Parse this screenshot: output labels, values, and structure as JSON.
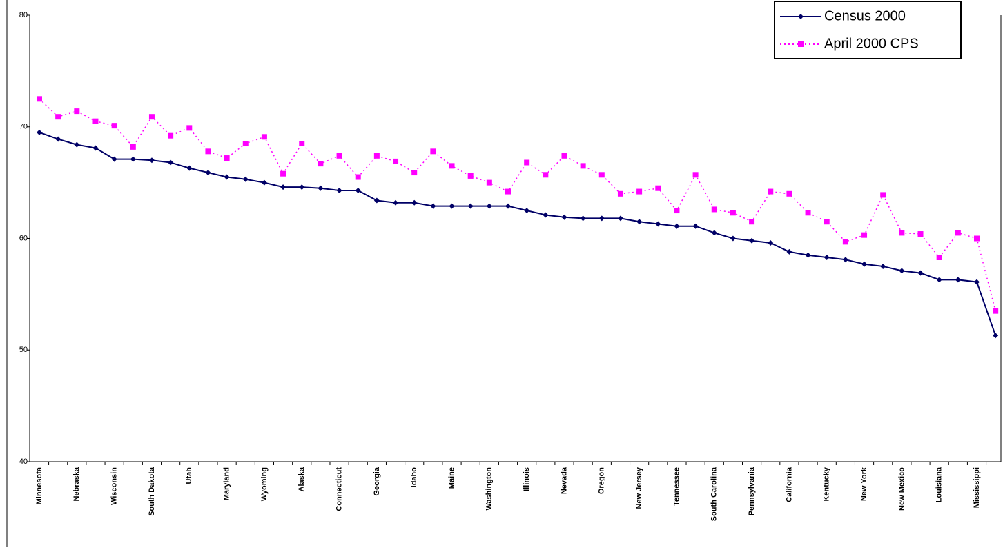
{
  "chart_data": {
    "type": "line",
    "categories": [
      "Minnesota",
      null,
      "Nebraska",
      null,
      "Wisconsin",
      null,
      "South Dakota",
      null,
      "Utah",
      null,
      "Maryland",
      null,
      "Wyoming",
      null,
      "Alaska",
      null,
      "Connecticut",
      null,
      "Georgia",
      null,
      "Idaho",
      null,
      "Maine",
      null,
      "Washington",
      null,
      "Illinois",
      null,
      "Nevada",
      null,
      "Oregon",
      null,
      "New Jersey",
      null,
      "Tennessee",
      null,
      "South Carolina",
      null,
      "Pennsylvania",
      null,
      "California",
      null,
      "Kentucky",
      null,
      "New York",
      null,
      "New Mexico",
      null,
      "Louisiana",
      null,
      "Mississippi",
      null
    ],
    "series": [
      {
        "name": "Census 2000",
        "color": "#000066",
        "marker": "diamond",
        "line_style": "solid",
        "values": [
          69.5,
          68.9,
          68.4,
          68.1,
          67.1,
          67.1,
          67.0,
          66.8,
          66.3,
          65.9,
          65.5,
          65.3,
          65.0,
          64.6,
          64.6,
          64.5,
          64.3,
          64.3,
          63.4,
          63.2,
          63.2,
          62.9,
          62.9,
          62.9,
          62.9,
          62.9,
          62.5,
          62.1,
          61.9,
          61.8,
          61.8,
          61.8,
          61.5,
          61.3,
          61.1,
          61.1,
          60.5,
          60.0,
          59.8,
          59.6,
          58.8,
          58.5,
          58.3,
          58.1,
          57.7,
          57.5,
          57.1,
          56.9,
          56.3,
          56.3,
          56.1,
          51.3
        ]
      },
      {
        "name": "April 2000 CPS",
        "color": "#ff00ff",
        "marker": "square",
        "line_style": "dotted",
        "values": [
          72.5,
          70.9,
          71.4,
          70.5,
          70.1,
          68.2,
          70.9,
          69.2,
          69.9,
          67.8,
          67.2,
          68.5,
          69.1,
          65.8,
          68.5,
          66.7,
          67.4,
          65.5,
          67.4,
          66.9,
          65.9,
          67.8,
          66.5,
          65.6,
          65.0,
          64.2,
          66.8,
          65.7,
          67.4,
          66.5,
          65.7,
          64.0,
          64.2,
          64.5,
          62.5,
          65.7,
          62.6,
          62.3,
          61.5,
          64.2,
          64.0,
          62.3,
          61.5,
          59.7,
          60.3,
          63.9,
          60.5,
          60.4,
          58.3,
          60.5,
          60.0,
          53.5
        ]
      }
    ],
    "ylim": [
      40,
      80
    ],
    "yticks": [
      40,
      50,
      60,
      70,
      80
    ],
    "legend": "top-right"
  }
}
